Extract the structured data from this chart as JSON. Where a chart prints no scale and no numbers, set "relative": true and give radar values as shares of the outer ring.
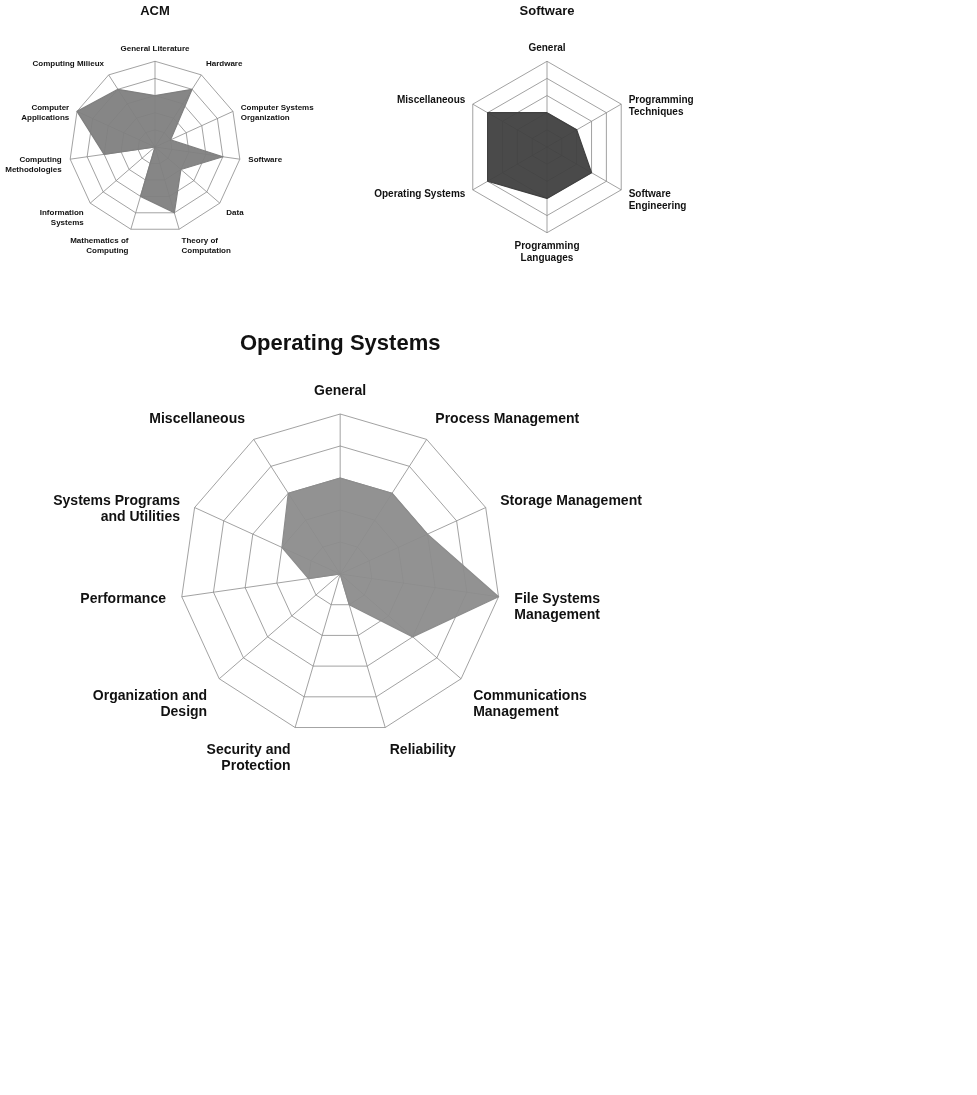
{
  "chart_data": [
    {
      "type": "radar",
      "title": "ACM",
      "relative": true,
      "grid": true,
      "categories": [
        "General Literature",
        "Hardware",
        "Computer Systems Organization",
        "Software",
        "Data",
        "Theory of Computation",
        "Mathematics of Computing",
        "Information Systems",
        "Computing Methodologies",
        "Computer Applications",
        "Computing Milieux"
      ],
      "series": [
        {
          "color": "#7f7f7f",
          "values": [
            0.6,
            0.8,
            0.2,
            0.8,
            0.4,
            0.8,
            0.6,
            0,
            0.6,
            1,
            0.8
          ]
        }
      ]
    },
    {
      "type": "radar",
      "title": "Software",
      "relative": true,
      "grid": true,
      "categories": [
        "General",
        "Programming Techniques",
        "Software Engineering",
        "Programming Languages",
        "Operating Systems",
        "Miscellaneous"
      ],
      "series": [
        {
          "color": "#404040",
          "values": [
            0.4,
            0.4,
            0.6,
            0.6,
            0.8,
            0.8
          ]
        }
      ]
    },
    {
      "type": "radar",
      "title": "Operating Systems",
      "relative": true,
      "grid": true,
      "categories": [
        "General",
        "Process Management",
        "Storage Management",
        "File Systems Management",
        "Communications Management",
        "Reliability",
        "Security and Protection",
        "Organization and Design",
        "Performance",
        "Systems Programs and Utilities",
        "Miscellaneous"
      ],
      "series": [
        {
          "color": "#8c8c8c",
          "values": [
            0.6,
            0.6,
            0.6,
            1,
            0.6,
            0.2,
            0,
            0,
            0.2,
            0.4,
            0.6
          ]
        }
      ]
    }
  ]
}
